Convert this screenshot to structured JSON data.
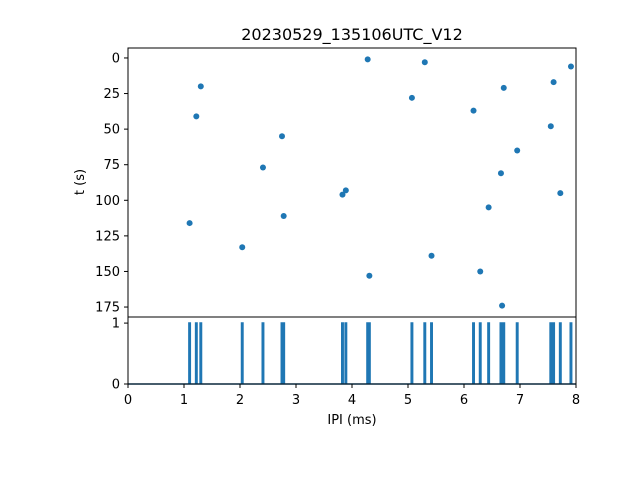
{
  "chart_data": [
    {
      "type": "scatter",
      "title": "20230529_135106UTC_V12",
      "xlabel": "",
      "ylabel": "t (s)",
      "xlim": [
        0,
        8
      ],
      "ylim": [
        182,
        -7
      ],
      "y_inverted": true,
      "yticks": [
        "0",
        "25",
        "50",
        "75",
        "100",
        "125",
        "150",
        "175"
      ],
      "grid": false,
      "color": "#1f77b4",
      "points": [
        {
          "x": 1.1,
          "y": 116
        },
        {
          "x": 1.22,
          "y": 41
        },
        {
          "x": 1.3,
          "y": 20
        },
        {
          "x": 2.04,
          "y": 133
        },
        {
          "x": 2.41,
          "y": 77
        },
        {
          "x": 2.75,
          "y": 55
        },
        {
          "x": 2.78,
          "y": 111
        },
        {
          "x": 3.83,
          "y": 96
        },
        {
          "x": 3.89,
          "y": 93
        },
        {
          "x": 4.28,
          "y": 1
        },
        {
          "x": 4.31,
          "y": 153
        },
        {
          "x": 5.07,
          "y": 28
        },
        {
          "x": 5.3,
          "y": 3
        },
        {
          "x": 5.42,
          "y": 139
        },
        {
          "x": 6.17,
          "y": 37
        },
        {
          "x": 6.29,
          "y": 150
        },
        {
          "x": 6.44,
          "y": 105
        },
        {
          "x": 6.66,
          "y": 81
        },
        {
          "x": 6.68,
          "y": 174
        },
        {
          "x": 6.71,
          "y": 21
        },
        {
          "x": 6.95,
          "y": 65
        },
        {
          "x": 7.55,
          "y": 48
        },
        {
          "x": 7.6,
          "y": 17
        },
        {
          "x": 7.72,
          "y": 95
        },
        {
          "x": 7.91,
          "y": 6
        }
      ]
    },
    {
      "type": "line",
      "title": "",
      "xlabel": "IPI (ms)",
      "ylabel": "",
      "xlim": [
        0,
        8
      ],
      "ylim": [
        0,
        1.1
      ],
      "xticks": [
        "0",
        "1",
        "2",
        "3",
        "4",
        "5",
        "6",
        "7",
        "8"
      ],
      "yticks": [
        "0",
        "1"
      ],
      "grid": false,
      "color": "#1f77b4",
      "pulses_x": [
        1.1,
        1.22,
        1.3,
        2.04,
        2.41,
        2.75,
        2.78,
        3.83,
        3.89,
        4.28,
        4.31,
        5.07,
        5.3,
        5.42,
        6.17,
        6.29,
        6.44,
        6.66,
        6.68,
        6.71,
        6.95,
        7.55,
        7.6,
        7.72,
        7.91
      ],
      "pulse_height": 1
    }
  ]
}
